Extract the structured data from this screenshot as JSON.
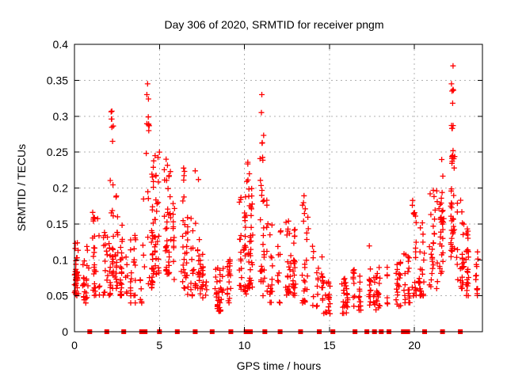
{
  "chart_data": {
    "type": "scatter",
    "title": "Day 306 of 2020, SRMTID for receiver pngm",
    "xlabel": "GPS time / hours",
    "ylabel": "SRMTID / TECUs",
    "xlim": [
      0,
      24
    ],
    "ylim": [
      0,
      0.4
    ],
    "xtick_values": [
      0,
      5,
      10,
      15,
      20
    ],
    "xtick_labels": [
      "0",
      "5",
      "10",
      "15",
      "20"
    ],
    "ytick_values": [
      0,
      0.05,
      0.1,
      0.15,
      0.2,
      0.25,
      0.3,
      0.35,
      0.4
    ],
    "ytick_labels": [
      "0",
      "0.05",
      "0.1",
      "0.15",
      "0.2",
      "0.25",
      "0.3",
      "0.35",
      "0.4"
    ],
    "grid": {
      "show": true,
      "color": "#b0b0b0",
      "dash": "2,4"
    },
    "border_color": "#000000",
    "marker": {
      "shape": "plus",
      "size": 7,
      "color": "#ff0000"
    },
    "baseline_markers": {
      "shape": "filled-square",
      "size": 6,
      "color": "#ff0000",
      "y": 0,
      "x": [
        0.9,
        1.9,
        2.9,
        3.95,
        4.15,
        5.0,
        6.05,
        7.1,
        8.1,
        9.2,
        10.1,
        10.35,
        11.2,
        12.1,
        13.3,
        14.4,
        15.2,
        16.5,
        17.2,
        17.65,
        18.05,
        18.5,
        19.35,
        19.6,
        20.6,
        21.65,
        22.7
      ]
    },
    "seed": 306,
    "clusters_schema": [
      "t_start",
      "t_end",
      "y_min",
      "y_max",
      "count",
      "low_bias"
    ],
    "clusters": [
      [
        0.0,
        0.3,
        0.05,
        0.13,
        35,
        1.3
      ],
      [
        0.3,
        1.0,
        0.04,
        0.12,
        25,
        1.4
      ],
      [
        1.0,
        1.6,
        0.05,
        0.17,
        30,
        1.6
      ],
      [
        1.6,
        2.1,
        0.05,
        0.14,
        25,
        1.5
      ],
      [
        2.1,
        2.3,
        0.2,
        0.31,
        7,
        0.9
      ],
      [
        2.1,
        2.7,
        0.06,
        0.19,
        35,
        1.7
      ],
      [
        2.7,
        3.3,
        0.05,
        0.16,
        30,
        1.5
      ],
      [
        3.3,
        4.0,
        0.04,
        0.14,
        28,
        1.5
      ],
      [
        4.2,
        4.4,
        0.24,
        0.345,
        8,
        0.9
      ],
      [
        4.0,
        4.6,
        0.06,
        0.22,
        30,
        1.8
      ],
      [
        4.6,
        5.1,
        0.08,
        0.25,
        35,
        1.8
      ],
      [
        5.1,
        5.8,
        0.08,
        0.26,
        38,
        1.8
      ],
      [
        5.8,
        6.5,
        0.06,
        0.235,
        32,
        1.8
      ],
      [
        6.5,
        7.1,
        0.05,
        0.16,
        25,
        1.5
      ],
      [
        7.1,
        7.4,
        0.06,
        0.23,
        18,
        1.9
      ],
      [
        7.4,
        8.0,
        0.04,
        0.11,
        20,
        1.4
      ],
      [
        8.0,
        9.0,
        0.028,
        0.09,
        35,
        1.4
      ],
      [
        9.0,
        9.6,
        0.04,
        0.11,
        20,
        1.5
      ],
      [
        9.6,
        10.1,
        0.05,
        0.19,
        35,
        1.6
      ],
      [
        10.1,
        10.8,
        0.06,
        0.25,
        40,
        1.9
      ],
      [
        10.9,
        11.15,
        0.19,
        0.33,
        9,
        0.9
      ],
      [
        10.8,
        11.4,
        0.05,
        0.19,
        28,
        1.6
      ],
      [
        11.4,
        12.2,
        0.04,
        0.15,
        25,
        1.5
      ],
      [
        12.2,
        12.8,
        0.05,
        0.175,
        24,
        1.6
      ],
      [
        12.8,
        13.4,
        0.05,
        0.15,
        22,
        1.5
      ],
      [
        13.4,
        14.0,
        0.04,
        0.19,
        26,
        1.8
      ],
      [
        14.0,
        14.6,
        0.035,
        0.12,
        20,
        1.5
      ],
      [
        14.6,
        15.4,
        0.025,
        0.08,
        22,
        1.3
      ],
      [
        15.4,
        16.4,
        0.025,
        0.075,
        26,
        1.3
      ],
      [
        16.4,
        17.2,
        0.03,
        0.09,
        24,
        1.4
      ],
      [
        17.2,
        17.6,
        0.035,
        0.13,
        16,
        1.7
      ],
      [
        17.6,
        18.4,
        0.03,
        0.09,
        26,
        1.4
      ],
      [
        18.4,
        19.2,
        0.035,
        0.1,
        26,
        1.4
      ],
      [
        19.2,
        19.8,
        0.04,
        0.12,
        20,
        1.5
      ],
      [
        19.8,
        20.1,
        0.05,
        0.19,
        18,
        1.6
      ],
      [
        20.1,
        20.8,
        0.05,
        0.16,
        26,
        1.5
      ],
      [
        20.8,
        21.4,
        0.06,
        0.2,
        28,
        1.6
      ],
      [
        21.4,
        22.0,
        0.08,
        0.24,
        30,
        1.6
      ],
      [
        22.0,
        22.45,
        0.1,
        0.26,
        38,
        1.3
      ],
      [
        22.1,
        22.4,
        0.28,
        0.345,
        6,
        0.9
      ],
      [
        22.45,
        23.0,
        0.06,
        0.185,
        28,
        1.4
      ],
      [
        23.0,
        23.5,
        0.05,
        0.145,
        24,
        1.4
      ],
      [
        23.5,
        23.85,
        0.05,
        0.115,
        12,
        1.3
      ]
    ],
    "feature_points": [
      [
        22.27,
        0.37
      ],
      [
        22.18,
        0.345
      ],
      [
        22.21,
        0.335
      ],
      [
        22.25,
        0.318
      ],
      [
        4.3,
        0.345
      ],
      [
        4.26,
        0.33
      ],
      [
        11.02,
        0.33
      ],
      [
        11.0,
        0.305
      ],
      [
        2.2,
        0.307
      ],
      [
        2.17,
        0.296
      ],
      [
        5.0,
        0.25
      ],
      [
        19.95,
        0.165
      ]
    ]
  }
}
